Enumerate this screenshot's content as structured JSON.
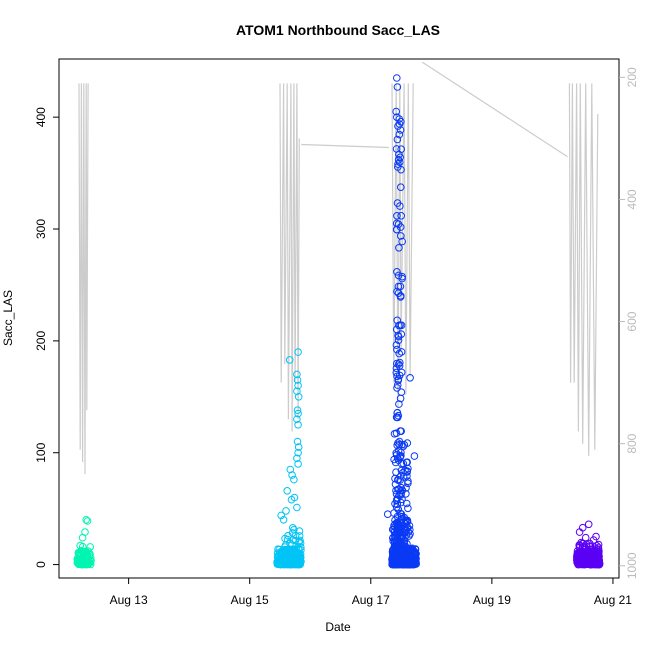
{
  "chart_data": {
    "type": "scatter",
    "title": "ATOM1 Northbound Sacc_LAS",
    "xlabel": "Date",
    "ylabel": "Sacc_LAS",
    "x_ticks": [
      "Aug 13",
      "Aug 15",
      "Aug 17",
      "Aug 19",
      "Aug 21"
    ],
    "x_tick_days": [
      13,
      15,
      17,
      19,
      21
    ],
    "xlim_days": [
      11.85,
      21.1
    ],
    "y_ticks": [
      0,
      100,
      200,
      300,
      400
    ],
    "ylim": [
      -12,
      452
    ],
    "y2_ticks": [
      200,
      400,
      600,
      800,
      1000
    ],
    "y2lim_reversed": [
      1020,
      170
    ],
    "y2_color": "#bbbbbb",
    "series": [
      {
        "color": "#00f5b0",
        "clusters": [
          {
            "x_range": [
              12.15,
              12.38
            ],
            "y_dense_max": 12,
            "n_dense": 90
          },
          {
            "x_range": [
              12.15,
              12.38
            ],
            "y_dense_max": 18,
            "n_dense": 20
          }
        ],
        "outliers": [
          {
            "x": 12.3,
            "y": 40
          },
          {
            "x": 12.32,
            "y": 39
          },
          {
            "x": 12.28,
            "y": 29
          },
          {
            "x": 12.24,
            "y": 24
          },
          {
            "x": 12.2,
            "y": 17
          }
        ]
      },
      {
        "color": "#00c4f5",
        "clusters": [
          {
            "x_range": [
              15.45,
              15.85
            ],
            "y_dense_max": 14,
            "n_dense": 200
          },
          {
            "x_range": [
              15.55,
              15.85
            ],
            "y_dense_max": 35,
            "n_dense": 60
          }
        ],
        "outliers": [
          {
            "x": 15.8,
            "y": 190
          },
          {
            "x": 15.78,
            "y": 170
          },
          {
            "x": 15.79,
            "y": 165
          },
          {
            "x": 15.8,
            "y": 160
          },
          {
            "x": 15.78,
            "y": 155
          },
          {
            "x": 15.81,
            "y": 150
          },
          {
            "x": 15.79,
            "y": 138
          },
          {
            "x": 15.8,
            "y": 135
          },
          {
            "x": 15.78,
            "y": 130
          },
          {
            "x": 15.8,
            "y": 125
          },
          {
            "x": 15.79,
            "y": 110
          },
          {
            "x": 15.81,
            "y": 105
          },
          {
            "x": 15.8,
            "y": 100
          },
          {
            "x": 15.78,
            "y": 95
          },
          {
            "x": 15.8,
            "y": 90
          },
          {
            "x": 15.66,
            "y": 183
          },
          {
            "x": 15.67,
            "y": 85
          },
          {
            "x": 15.7,
            "y": 80
          },
          {
            "x": 15.73,
            "y": 76
          },
          {
            "x": 15.62,
            "y": 66
          },
          {
            "x": 15.69,
            "y": 58
          },
          {
            "x": 15.74,
            "y": 60
          },
          {
            "x": 15.6,
            "y": 48
          },
          {
            "x": 15.52,
            "y": 44
          },
          {
            "x": 15.56,
            "y": 40
          },
          {
            "x": 15.78,
            "y": 51
          }
        ]
      },
      {
        "color": "#0a3af5",
        "clusters": [
          {
            "x_range": [
              17.35,
              17.75
            ],
            "y_dense_max": 15,
            "n_dense": 350
          },
          {
            "x_range": [
              17.35,
              17.65
            ],
            "y_dense_max": 40,
            "n_dense": 120
          },
          {
            "x_range": [
              17.38,
              17.62
            ],
            "y_dense_max": 120,
            "n_dense": 120
          },
          {
            "x_range": [
              17.42,
              17.52
            ],
            "y_dense_max": 400,
            "n_dense": 120
          }
        ],
        "outliers": [
          {
            "x": 17.43,
            "y": 435
          },
          {
            "x": 17.44,
            "y": 427
          },
          {
            "x": 17.42,
            "y": 405
          },
          {
            "x": 17.43,
            "y": 400
          },
          {
            "x": 17.45,
            "y": 392
          },
          {
            "x": 17.44,
            "y": 380
          },
          {
            "x": 17.46,
            "y": 362
          },
          {
            "x": 17.45,
            "y": 358
          },
          {
            "x": 17.65,
            "y": 167
          },
          {
            "x": 17.72,
            "y": 97
          },
          {
            "x": 17.28,
            "y": 45
          }
        ]
      },
      {
        "color": "#5a00f5",
        "clusters": [
          {
            "x_range": [
              20.4,
              20.78
            ],
            "y_dense_max": 12,
            "n_dense": 260
          },
          {
            "x_range": [
              20.4,
              20.78
            ],
            "y_dense_max": 20,
            "n_dense": 50
          }
        ],
        "outliers": [
          {
            "x": 20.6,
            "y": 36
          },
          {
            "x": 20.5,
            "y": 33
          },
          {
            "x": 20.45,
            "y": 29
          },
          {
            "x": 20.72,
            "y": 25
          },
          {
            "x": 20.68,
            "y": 22
          },
          {
            "x": 20.55,
            "y": 24
          }
        ]
      }
    ],
    "gray_line": {
      "color": "#cccccc",
      "axis": "right",
      "segments": [
        {
          "x": [
            12.18,
            12.2,
            12.22,
            12.24,
            12.26,
            12.28,
            12.3,
            12.31,
            12.33
          ],
          "y": [
            210,
            810,
            210,
            830,
            210,
            850,
            210,
            745,
            210
          ]
        },
        {
          "x": [
            15.5,
            15.52,
            15.56,
            15.58,
            15.62,
            15.64,
            15.68,
            15.7,
            15.73,
            15.75,
            15.78,
            15.8,
            15.82
          ],
          "y": [
            210,
            700,
            210,
            670,
            210,
            760,
            210,
            780,
            210,
            700,
            210,
            760,
            300
          ]
        },
        {
          "x": [
            15.85,
            17.3
          ],
          "y": [
            310,
            315
          ]
        },
        {
          "x": [
            17.35,
            17.38,
            17.42,
            17.45,
            17.48,
            17.5,
            17.55,
            17.58,
            17.62,
            17.65,
            17.7
          ],
          "y": [
            210,
            700,
            210,
            740,
            210,
            650,
            210,
            720,
            210,
            690,
            210
          ]
        },
        {
          "x": [
            17.85,
            20.25
          ],
          "y": [
            175,
            330
          ]
        },
        {
          "x": [
            20.28,
            20.3,
            20.33,
            20.36,
            20.4,
            20.43,
            20.46,
            20.5,
            20.55,
            20.6,
            20.65,
            20.7,
            20.75
          ],
          "y": [
            210,
            700,
            210,
            700,
            210,
            780,
            210,
            800,
            210,
            820,
            210,
            810,
            260
          ]
        }
      ]
    }
  }
}
